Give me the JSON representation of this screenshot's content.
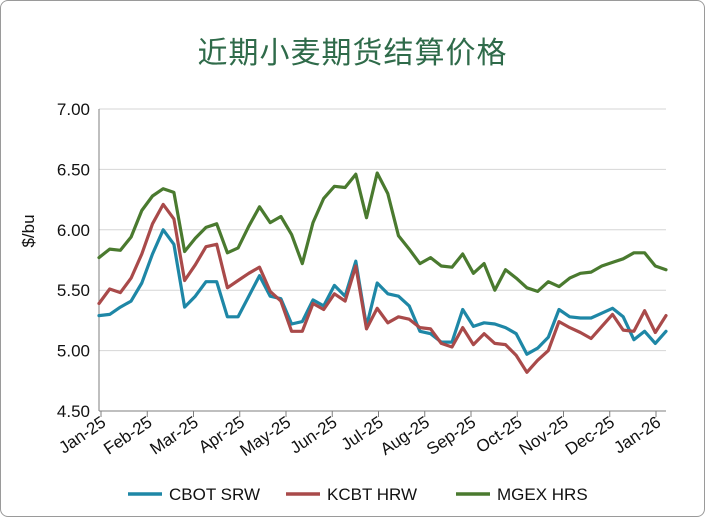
{
  "chart_data": {
    "type": "line",
    "title": "近期小麦期货结算价格",
    "ylabel": "$/bu",
    "ylim": [
      4.5,
      7.0
    ],
    "yticks": [
      "7.00",
      "6.50",
      "6.00",
      "5.50",
      "5.00",
      "4.50"
    ],
    "xtick_labels": [
      "Jan-25",
      "Feb-25",
      "Mar-25",
      "Apr-25",
      "May-25",
      "Jun-25",
      "Jul-25",
      "Aug-25",
      "Sep-25",
      "Oct-25",
      "Nov-25",
      "Dec-25",
      "Jan-26"
    ],
    "legend": "bottom",
    "series": [
      {
        "name": "CBOT SRW",
        "color": "#1e87a6",
        "values": [
          5.29,
          5.3,
          5.36,
          5.41,
          5.56,
          5.8,
          6.0,
          5.88,
          5.36,
          5.45,
          5.57,
          5.57,
          5.28,
          5.28,
          5.45,
          5.62,
          5.45,
          5.43,
          5.22,
          5.24,
          5.42,
          5.37,
          5.54,
          5.45,
          5.74,
          5.2,
          5.56,
          5.47,
          5.45,
          5.37,
          5.16,
          5.14,
          5.07,
          5.07,
          5.34,
          5.2,
          5.23,
          5.22,
          5.19,
          5.14,
          4.97,
          5.02,
          5.11,
          5.34,
          5.28,
          5.27,
          5.27,
          5.31,
          5.35,
          5.28,
          5.09,
          5.16,
          5.06,
          5.16
        ]
      },
      {
        "name": "KCBT HRW",
        "color": "#a94a4a",
        "values": [
          5.39,
          5.51,
          5.48,
          5.6,
          5.8,
          6.05,
          6.21,
          6.09,
          5.58,
          5.71,
          5.86,
          5.88,
          5.52,
          5.58,
          5.64,
          5.69,
          5.49,
          5.41,
          5.16,
          5.16,
          5.39,
          5.34,
          5.47,
          5.41,
          5.7,
          5.18,
          5.35,
          5.23,
          5.28,
          5.26,
          5.19,
          5.18,
          5.06,
          5.03,
          5.19,
          5.05,
          5.14,
          5.06,
          5.05,
          4.96,
          4.82,
          4.92,
          5.0,
          5.24,
          5.19,
          5.15,
          5.1,
          5.2,
          5.3,
          5.17,
          5.16,
          5.33,
          5.15,
          5.29
        ]
      },
      {
        "name": "MGEX HRS",
        "color": "#4a7a2f",
        "values": [
          5.77,
          5.84,
          5.83,
          5.94,
          6.16,
          6.28,
          6.34,
          6.31,
          5.82,
          5.93,
          6.02,
          6.05,
          5.81,
          5.85,
          6.03,
          6.19,
          6.06,
          6.11,
          5.96,
          5.72,
          6.06,
          6.26,
          6.36,
          6.35,
          6.46,
          6.1,
          6.47,
          6.3,
          5.95,
          5.84,
          5.72,
          5.77,
          5.7,
          5.69,
          5.8,
          5.64,
          5.72,
          5.5,
          5.67,
          5.6,
          5.52,
          5.49,
          5.57,
          5.53,
          5.6,
          5.64,
          5.65,
          5.7,
          5.73,
          5.76,
          5.81,
          5.81,
          5.7,
          5.67
        ]
      }
    ]
  }
}
